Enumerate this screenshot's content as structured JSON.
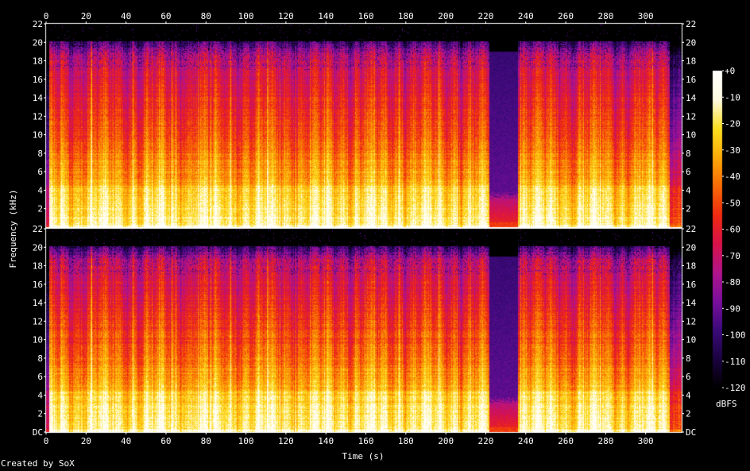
{
  "chart_data": {
    "type": "heatmap",
    "title": "",
    "xlabel": "Time (s)",
    "ylabel": "Frequency (kHz)",
    "xlim": [
      0,
      318
    ],
    "ylim": [
      0,
      22
    ],
    "x_ticks": [
      "0",
      "20",
      "40",
      "60",
      "80",
      "100",
      "120",
      "140",
      "160",
      "180",
      "200",
      "220",
      "240",
      "260",
      "280",
      "300"
    ],
    "y_ticks": [
      "DC",
      "2",
      "4",
      "6",
      "8",
      "10",
      "12",
      "14",
      "16",
      "18",
      "20",
      "22"
    ],
    "channels": 2,
    "colorbar": {
      "label": "dBFS",
      "range": [
        -120,
        0
      ],
      "ticks": [
        "+0",
        "-10",
        "-20",
        "-30",
        "-40",
        "-50",
        "-60",
        "-70",
        "-80",
        "-90",
        "-100",
        "-110",
        "-120"
      ]
    },
    "colors": {
      "background": "#000000",
      "text": "#ffffff",
      "scale": [
        "#000000",
        "#1a0340",
        "#3b0a7a",
        "#7a0f9e",
        "#b0148c",
        "#d8124a",
        "#ef2a10",
        "#f86a06",
        "#fcaa08",
        "#fde020",
        "#fffbe0",
        "#ffffff"
      ]
    },
    "quiet_segment_s": [
      222,
      236
    ],
    "lowpass_cutoff_khz": 20
  },
  "footer": {
    "credit": "Created by SoX"
  }
}
